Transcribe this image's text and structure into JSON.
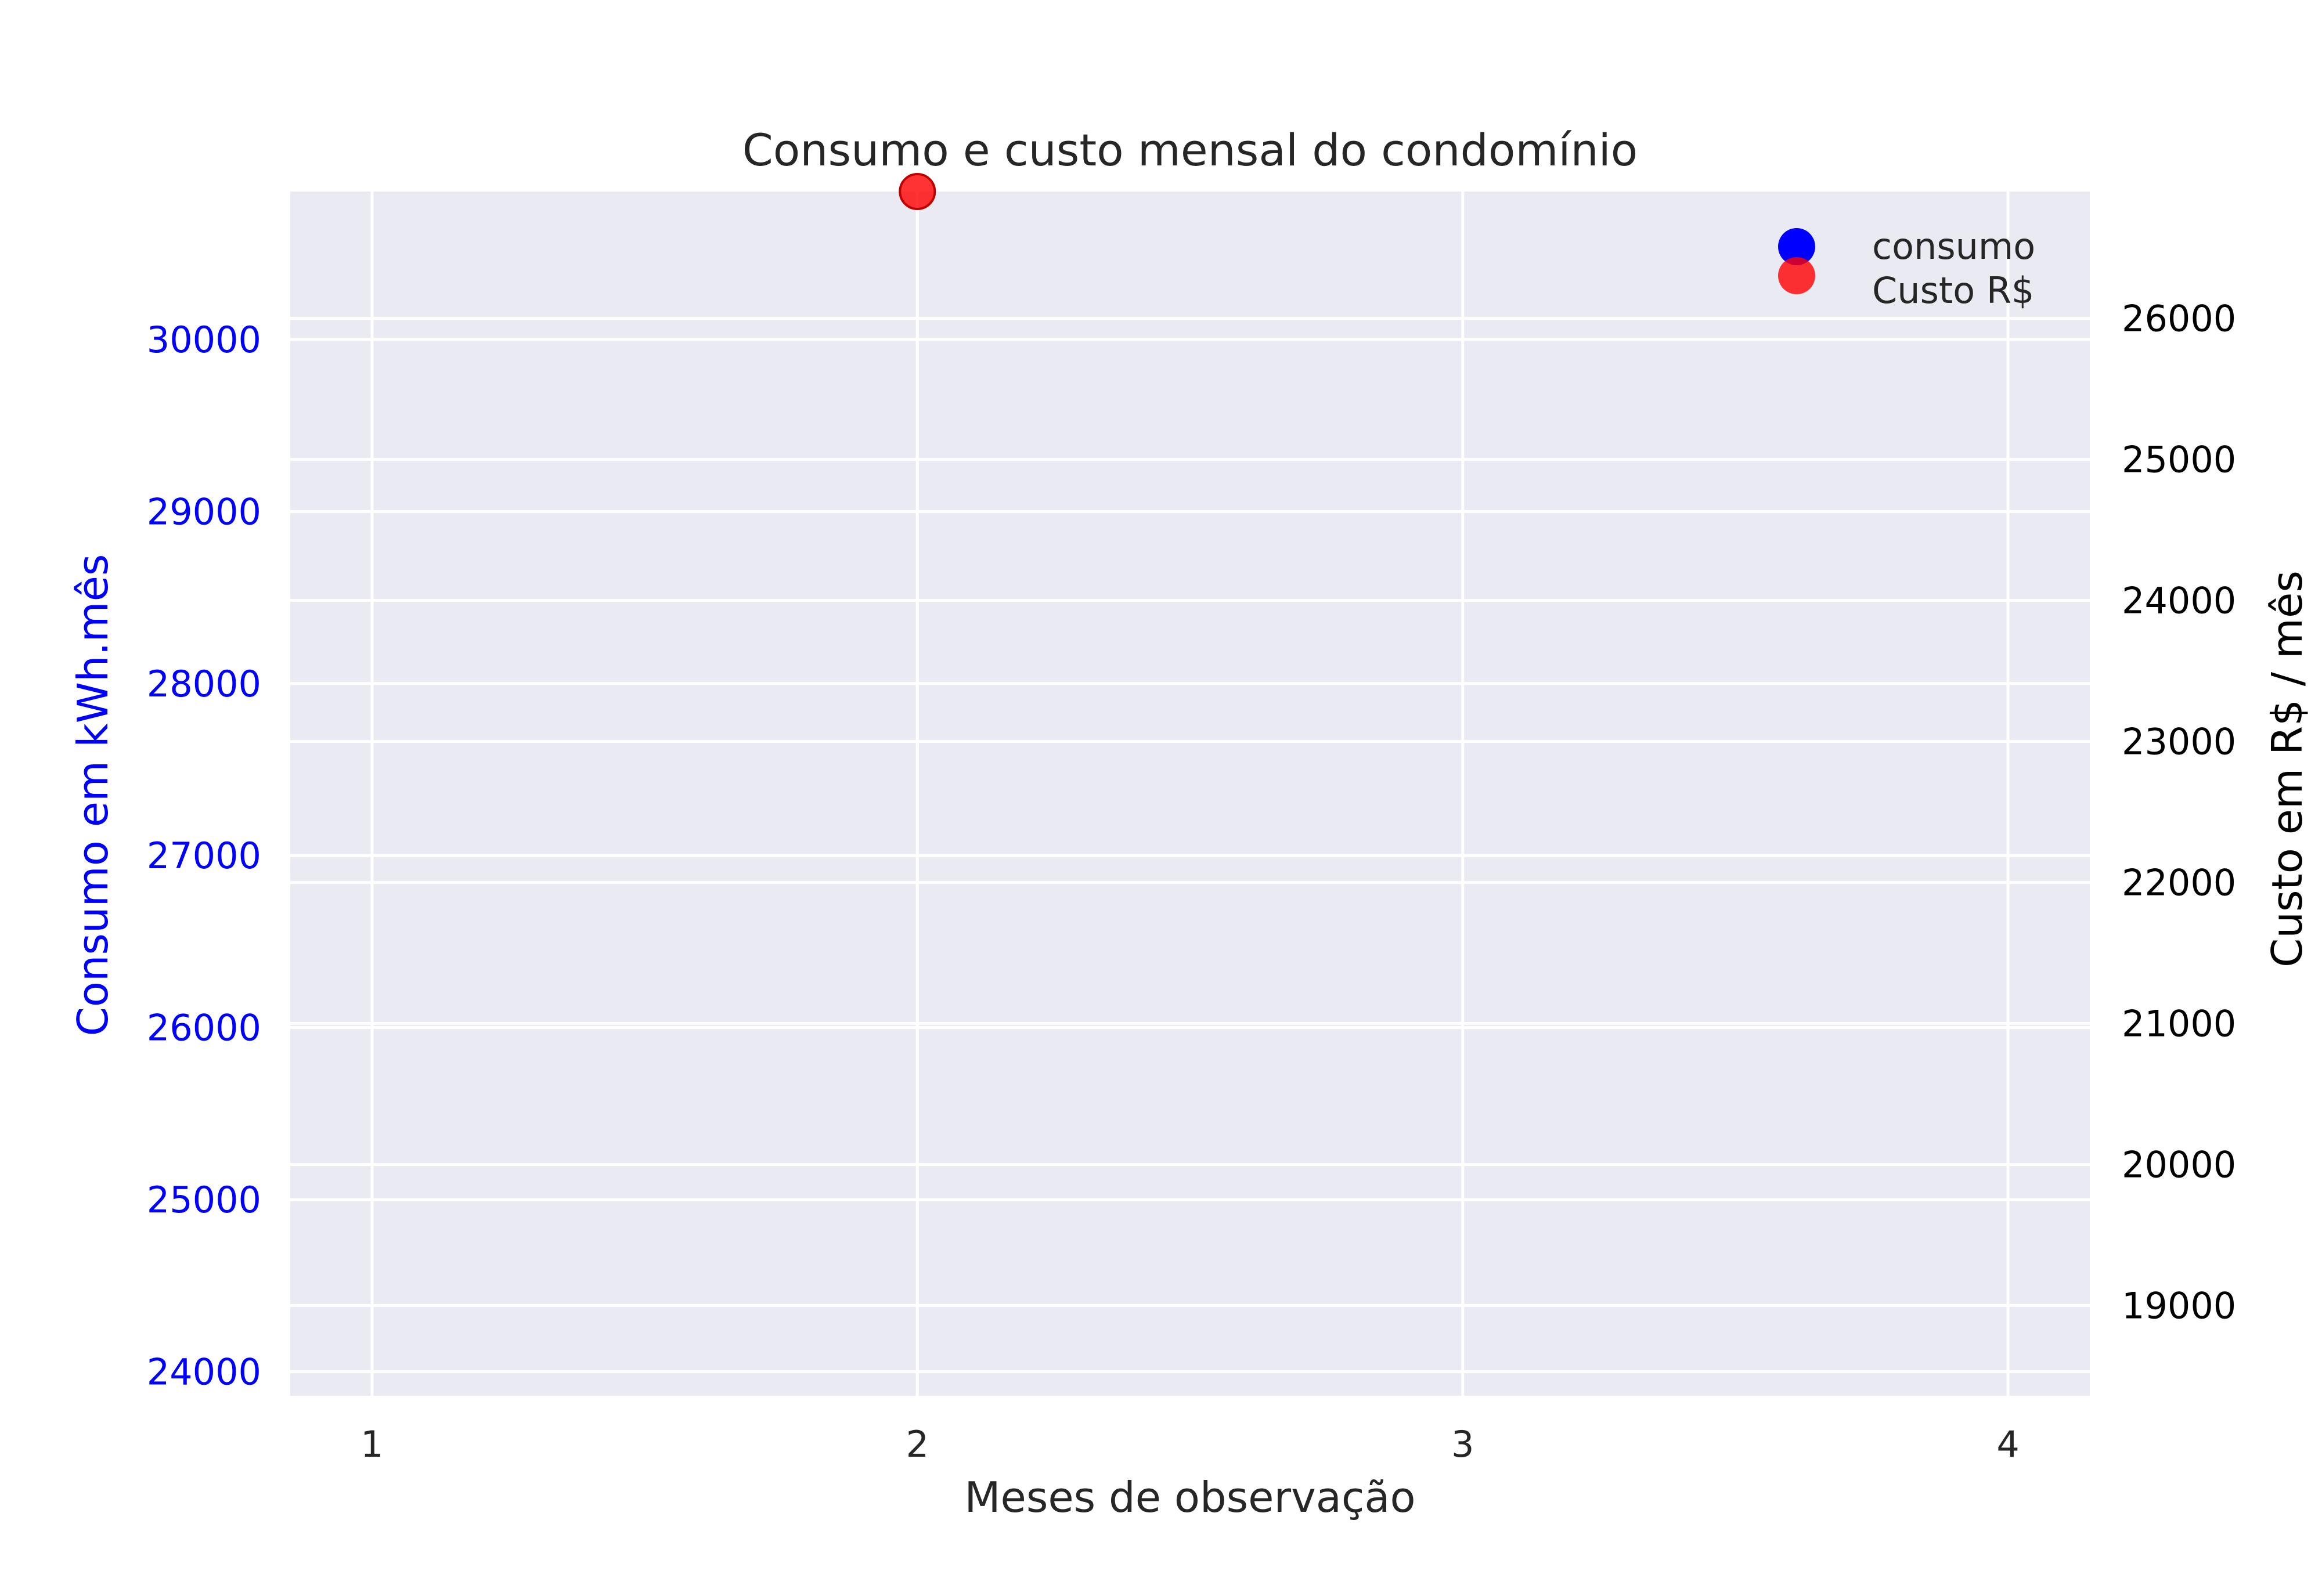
{
  "chart_data": {
    "type": "scatter",
    "title": "Consumo e custo mensal do condomínio",
    "xlabel": "Meses de observação",
    "ylabel_left": "Consumo em kWh.mês",
    "ylabel_right": "Custo em R$ / mês",
    "x_ticks": [
      "1",
      "2",
      "3",
      "4"
    ],
    "xlim": [
      0.85,
      4.15
    ],
    "y_left_ticks": [
      "24000",
      "25000",
      "26000",
      "27000",
      "28000",
      "29000",
      "30000"
    ],
    "y_left_lim": [
      23860,
      30860
    ],
    "y_right_ticks": [
      "19000",
      "20000",
      "21000",
      "22000",
      "23000",
      "24000",
      "25000",
      "26000"
    ],
    "y_right_lim": [
      18360,
      26900
    ],
    "grid": true,
    "legend_position": "top-right",
    "series": [
      {
        "name": "consumo",
        "axis": "left",
        "color": "#0000ff",
        "points": []
      },
      {
        "name": "Custo R$",
        "axis": "right",
        "color": "#ff0000",
        "points": [
          [
            2,
            26900
          ]
        ]
      }
    ],
    "colors": {
      "left_axis": "#0000ff",
      "right_axis": "#000000",
      "plot_background": "#eaeaf2",
      "grid": "#ffffff",
      "text": "#262626"
    }
  }
}
